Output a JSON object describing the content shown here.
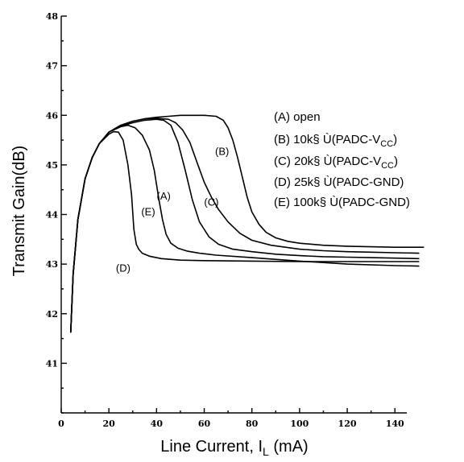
{
  "chart_data": {
    "type": "line",
    "xlabel": "Line Current, I",
    "xlabel_sub": "L",
    "xlabel_unit": " (mA)",
    "ylabel": "Transmit Gain(dB)",
    "xlim": [
      0,
      145
    ],
    "ylim": [
      40,
      48
    ],
    "x_ticks": [
      0,
      20,
      40,
      60,
      80,
      100,
      120,
      140
    ],
    "y_ticks": [
      41,
      42,
      43,
      44,
      45,
      46,
      47,
      48
    ],
    "grid": false,
    "legend_position": "right",
    "legend": [
      {
        "label": "(A)  open"
      },
      {
        "label": "(B)  10k§  Ù(PADC-V",
        "sub": "CC",
        "tail": ")"
      },
      {
        "label": "(C)  20k§  Ù(PADC-V",
        "sub": "CC",
        "tail": ")"
      },
      {
        "label": "(D)  25k§  Ù(PADC-GND)"
      },
      {
        "label": "(E)  100k§  Ù(PADC-GND)"
      }
    ],
    "series": [
      {
        "name": "(A)",
        "label_at": [
          43,
          44.3
        ],
        "x": [
          4,
          5,
          7,
          10,
          13,
          16,
          20,
          25,
          30,
          35,
          40,
          43,
          46,
          49,
          52,
          55,
          58,
          62,
          66,
          72,
          80,
          90,
          100,
          110,
          120,
          130,
          140,
          150
        ],
        "y": [
          41.63,
          42.8,
          43.9,
          44.72,
          45.15,
          45.43,
          45.66,
          45.78,
          45.85,
          45.9,
          45.92,
          45.9,
          45.8,
          45.45,
          44.9,
          44.3,
          43.85,
          43.55,
          43.4,
          43.3,
          43.25,
          43.2,
          43.17,
          43.15,
          43.14,
          43.13,
          43.12,
          43.11
        ]
      },
      {
        "name": "(B)",
        "label_at": [
          67.5,
          45.2
        ],
        "x": [
          4,
          5,
          7,
          10,
          13,
          16,
          20,
          25,
          30,
          35,
          40,
          45,
          50,
          55,
          60,
          65,
          68,
          70,
          72,
          74,
          76,
          78,
          80,
          83,
          86,
          90,
          95,
          100,
          110,
          120,
          130,
          140,
          152
        ],
        "y": [
          41.63,
          42.8,
          43.9,
          44.72,
          45.15,
          45.43,
          45.66,
          45.8,
          45.88,
          45.93,
          45.96,
          45.98,
          46.0,
          46.0,
          46.0,
          45.98,
          45.9,
          45.75,
          45.5,
          45.15,
          44.75,
          44.35,
          44.05,
          43.8,
          43.64,
          43.53,
          43.46,
          43.42,
          43.38,
          43.36,
          43.35,
          43.34,
          43.34
        ]
      },
      {
        "name": "(C)",
        "label_at": [
          63,
          44.18
        ],
        "x": [
          4,
          5,
          7,
          10,
          13,
          16,
          20,
          25,
          30,
          35,
          40,
          45,
          48,
          51,
          54,
          57,
          60,
          63,
          66,
          70,
          75,
          80,
          88,
          100,
          110,
          120,
          130,
          140,
          150
        ],
        "y": [
          41.63,
          42.8,
          43.9,
          44.72,
          45.15,
          45.43,
          45.66,
          45.8,
          45.88,
          45.93,
          45.94,
          45.92,
          45.85,
          45.7,
          45.45,
          45.05,
          44.65,
          44.35,
          44.1,
          43.85,
          43.62,
          43.48,
          43.38,
          43.3,
          43.27,
          43.25,
          43.24,
          43.23,
          43.22
        ]
      },
      {
        "name": "(D)",
        "label_at": [
          26,
          42.85
        ],
        "x": [
          4,
          5,
          7,
          10,
          13,
          16,
          20,
          22,
          24,
          26,
          28,
          29.5,
          30.5,
          31.5,
          32.5,
          34,
          37,
          42,
          50,
          60,
          80,
          100,
          120,
          140,
          150
        ],
        "y": [
          41.63,
          42.8,
          43.9,
          44.72,
          45.15,
          45.43,
          45.62,
          45.67,
          45.66,
          45.5,
          45.0,
          44.4,
          43.7,
          43.4,
          43.3,
          43.22,
          43.16,
          43.11,
          43.08,
          43.07,
          43.06,
          43.05,
          43.05,
          43.05,
          43.05
        ]
      },
      {
        "name": "(E)",
        "label_at": [
          36.5,
          43.98
        ],
        "x": [
          4,
          5,
          7,
          10,
          13,
          16,
          20,
          25,
          28,
          31,
          34,
          37,
          39,
          41,
          42.5,
          44,
          46,
          49,
          53,
          58,
          65,
          80,
          100,
          120,
          140,
          150
        ],
        "y": [
          41.63,
          42.8,
          43.9,
          44.72,
          45.15,
          45.43,
          45.66,
          45.77,
          45.8,
          45.75,
          45.6,
          45.3,
          44.9,
          44.3,
          43.9,
          43.6,
          43.42,
          43.32,
          43.26,
          43.22,
          43.18,
          43.13,
          43.06,
          43.0,
          42.97,
          42.96
        ]
      }
    ]
  }
}
